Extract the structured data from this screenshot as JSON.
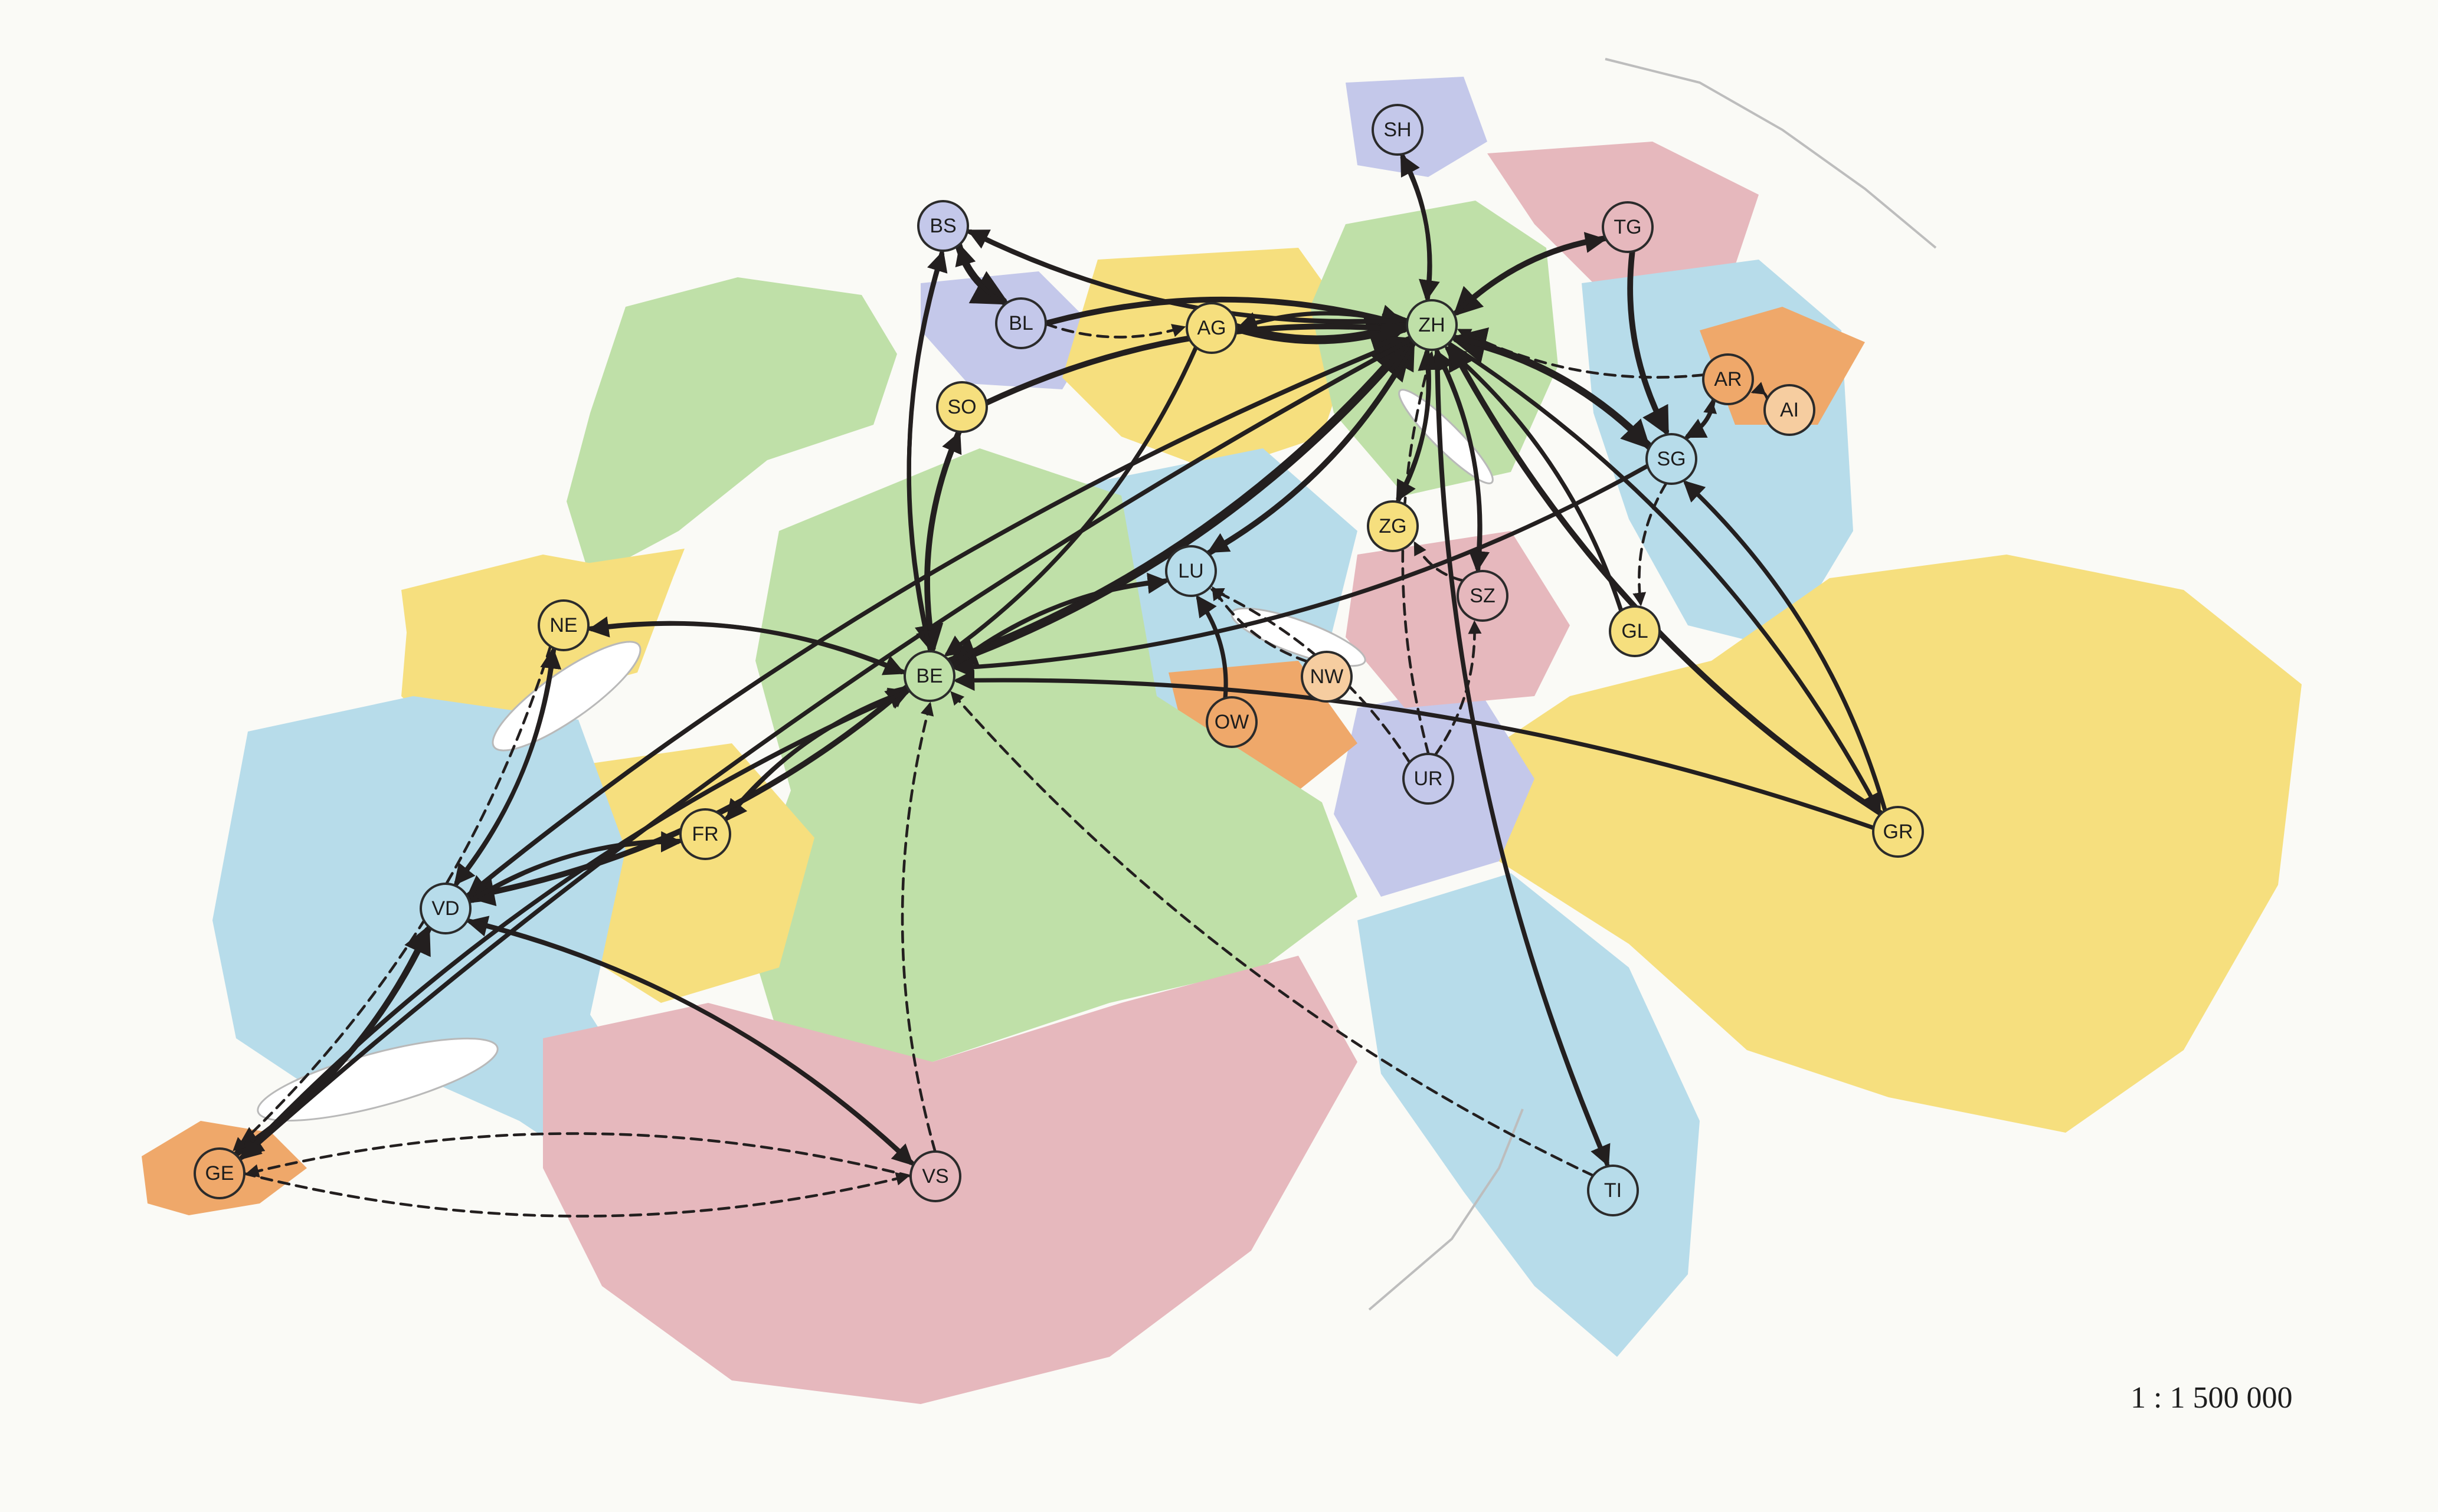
{
  "map": {
    "scale_label": "1 : 1 500 000",
    "colors": {
      "green": "#bfe0a8",
      "yellow": "#f6df7e",
      "blue": "#b7dcea",
      "pink": "#e6b8bd",
      "orange": "#efa86a",
      "lavender": "#c4c8ea",
      "peach": "#f6cda0",
      "lake": "#ffffff",
      "arrow": "#231f1f"
    },
    "nodes": [
      {
        "id": "SH",
        "label": "SH",
        "fill": "lavender"
      },
      {
        "id": "BS",
        "label": "BS",
        "fill": "lavender"
      },
      {
        "id": "BL",
        "label": "BL",
        "fill": "lavender"
      },
      {
        "id": "AG",
        "label": "AG",
        "fill": "yellow"
      },
      {
        "id": "ZH",
        "label": "ZH",
        "fill": "green"
      },
      {
        "id": "TG",
        "label": "TG",
        "fill": "pink"
      },
      {
        "id": "AR",
        "label": "AR",
        "fill": "orange"
      },
      {
        "id": "AI",
        "label": "AI",
        "fill": "peach"
      },
      {
        "id": "SO",
        "label": "SO",
        "fill": "yellow"
      },
      {
        "id": "SG",
        "label": "SG",
        "fill": "blue"
      },
      {
        "id": "ZG",
        "label": "ZG",
        "fill": "yellow"
      },
      {
        "id": "LU",
        "label": "LU",
        "fill": "blue"
      },
      {
        "id": "SZ",
        "label": "SZ",
        "fill": "pink"
      },
      {
        "id": "NE",
        "label": "NE",
        "fill": "yellow"
      },
      {
        "id": "GL",
        "label": "GL",
        "fill": "yellow"
      },
      {
        "id": "BE",
        "label": "BE",
        "fill": "green"
      },
      {
        "id": "NW",
        "label": "NW",
        "fill": "peach"
      },
      {
        "id": "OW",
        "label": "OW",
        "fill": "orange"
      },
      {
        "id": "UR",
        "label": "UR",
        "fill": "lavender"
      },
      {
        "id": "FR",
        "label": "FR",
        "fill": "yellow"
      },
      {
        "id": "GR",
        "label": "GR",
        "fill": "yellow"
      },
      {
        "id": "VD",
        "label": "VD",
        "fill": "blue"
      },
      {
        "id": "GE",
        "label": "GE",
        "fill": "orange"
      },
      {
        "id": "VS",
        "label": "VS",
        "fill": "pink"
      },
      {
        "id": "TI",
        "label": "TI",
        "fill": "blue"
      }
    ],
    "flows": [
      {
        "from": "BE",
        "to": "ZH",
        "weight": 5
      },
      {
        "from": "ZH",
        "to": "BE",
        "weight": 3
      },
      {
        "from": "AG",
        "to": "ZH",
        "weight": 5
      },
      {
        "from": "BL",
        "to": "ZH",
        "weight": 3
      },
      {
        "from": "BS",
        "to": "BL",
        "weight": 4
      },
      {
        "from": "BL",
        "to": "BS",
        "weight": 2
      },
      {
        "from": "BS",
        "to": "ZH",
        "weight": 2
      },
      {
        "from": "SO",
        "to": "ZH",
        "weight": 3
      },
      {
        "from": "SO",
        "to": "BE",
        "weight": 3
      },
      {
        "from": "BE",
        "to": "SO",
        "weight": 2
      },
      {
        "from": "SG",
        "to": "ZH",
        "weight": 4
      },
      {
        "from": "ZH",
        "to": "SG",
        "weight": 3
      },
      {
        "from": "TG",
        "to": "ZH",
        "weight": 3
      },
      {
        "from": "ZH",
        "to": "TG",
        "weight": 2
      },
      {
        "from": "TG",
        "to": "SG",
        "weight": 3
      },
      {
        "from": "SH",
        "to": "ZH",
        "weight": 2
      },
      {
        "from": "ZH",
        "to": "SH",
        "weight": 2
      },
      {
        "from": "GR",
        "to": "ZH",
        "weight": 3
      },
      {
        "from": "GR",
        "to": "SG",
        "weight": 2
      },
      {
        "from": "ZH",
        "to": "GR",
        "weight": 2
      },
      {
        "from": "ZG",
        "to": "ZH",
        "weight": 2
      },
      {
        "from": "ZH",
        "to": "ZG",
        "weight": 2
      },
      {
        "from": "LU",
        "to": "ZH",
        "weight": 3
      },
      {
        "from": "ZH",
        "to": "LU",
        "weight": 2
      },
      {
        "from": "SZ",
        "to": "ZH",
        "weight": 2
      },
      {
        "from": "ZH",
        "to": "SZ",
        "weight": 2
      },
      {
        "from": "GL",
        "to": "ZH",
        "weight": 2
      },
      {
        "from": "TI",
        "to": "ZH",
        "weight": 2
      },
      {
        "from": "ZH",
        "to": "TI",
        "weight": 2
      },
      {
        "from": "AR",
        "to": "ZH",
        "weight": 1,
        "dashed": true
      },
      {
        "from": "AI",
        "to": "AR",
        "weight": 1,
        "dashed": true
      },
      {
        "from": "AR",
        "to": "SG",
        "weight": 2
      },
      {
        "from": "SG",
        "to": "AR",
        "weight": 1,
        "dashed": true
      },
      {
        "from": "FR",
        "to": "BE",
        "weight": 2
      },
      {
        "from": "BE",
        "to": "FR",
        "weight": 2
      },
      {
        "from": "BE",
        "to": "VD",
        "weight": 3
      },
      {
        "from": "VD",
        "to": "BE",
        "weight": 2
      },
      {
        "from": "NE",
        "to": "BE",
        "weight": 2
      },
      {
        "from": "BE",
        "to": "NE",
        "weight": 2
      },
      {
        "from": "VD",
        "to": "GE",
        "weight": 3
      },
      {
        "from": "GE",
        "to": "VD",
        "weight": 3
      },
      {
        "from": "VD",
        "to": "ZH",
        "weight": 2
      },
      {
        "from": "ZH",
        "to": "VD",
        "weight": 2
      },
      {
        "from": "GE",
        "to": "ZH",
        "weight": 2
      },
      {
        "from": "ZH",
        "to": "GE",
        "weight": 2
      },
      {
        "from": "GE",
        "to": "BE",
        "weight": 2
      },
      {
        "from": "BE",
        "to": "GE",
        "weight": 2
      },
      {
        "from": "NE",
        "to": "VD",
        "weight": 2
      },
      {
        "from": "VD",
        "to": "NE",
        "weight": 2
      },
      {
        "from": "NE",
        "to": "GE",
        "weight": 1,
        "dashed": true
      },
      {
        "from": "FR",
        "to": "VD",
        "weight": 2
      },
      {
        "from": "VD",
        "to": "FR",
        "weight": 2
      },
      {
        "from": "VS",
        "to": "VD",
        "weight": 2
      },
      {
        "from": "VD",
        "to": "VS",
        "weight": 2
      },
      {
        "from": "VS",
        "to": "GE",
        "weight": 1,
        "dashed": true
      },
      {
        "from": "VS",
        "to": "BE",
        "weight": 1,
        "dashed": true
      },
      {
        "from": "GE",
        "to": "VS",
        "weight": 1,
        "dashed": true
      },
      {
        "from": "TI",
        "to": "BE",
        "weight": 1,
        "dashed": true
      },
      {
        "from": "ZH",
        "to": "AG",
        "weight": 2
      },
      {
        "from": "AG",
        "to": "BE",
        "weight": 2
      },
      {
        "from": "LU",
        "to": "BE",
        "weight": 2
      },
      {
        "from": "BE",
        "to": "LU",
        "weight": 2
      },
      {
        "from": "OW",
        "to": "LU",
        "weight": 2
      },
      {
        "from": "NW",
        "to": "LU",
        "weight": 1,
        "dashed": true
      },
      {
        "from": "UR",
        "to": "LU",
        "weight": 1,
        "dashed": true
      },
      {
        "from": "UR",
        "to": "ZH",
        "weight": 1,
        "dashed": true
      },
      {
        "from": "UR",
        "to": "SZ",
        "weight": 1,
        "dashed": true
      },
      {
        "from": "SZ",
        "to": "ZG",
        "weight": 1,
        "dashed": true
      },
      {
        "from": "BS",
        "to": "BE",
        "weight": 2
      },
      {
        "from": "BE",
        "to": "BS",
        "weight": 2
      },
      {
        "from": "BL",
        "to": "AG",
        "weight": 1,
        "dashed": true
      },
      {
        "from": "ZH",
        "to": "BS",
        "weight": 2
      },
      {
        "from": "SG",
        "to": "GL",
        "weight": 1,
        "dashed": true
      },
      {
        "from": "SG",
        "to": "BE",
        "weight": 2
      },
      {
        "from": "GR",
        "to": "BE",
        "weight": 2
      }
    ]
  }
}
